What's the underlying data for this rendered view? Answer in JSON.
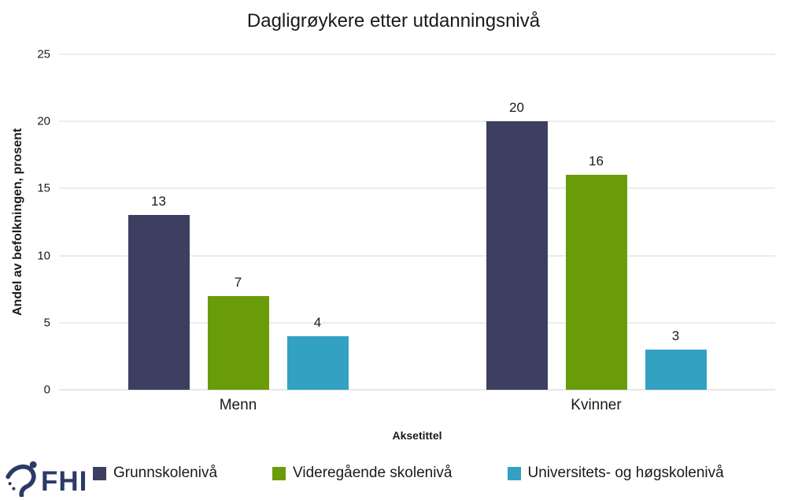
{
  "chart_data": {
    "type": "bar",
    "title": "Dagligrøykere etter utdanningsnivå",
    "categories": [
      "Menn",
      "Kvinner"
    ],
    "series": [
      {
        "name": "Grunnskolenivå",
        "color": "#3C3F60",
        "values": [
          13,
          20
        ]
      },
      {
        "name": "Videregående skolenivå",
        "color": "#6A9C0A",
        "values": [
          7,
          16
        ]
      },
      {
        "name": "Universitets- og høgskolenivå",
        "color": "#33A1C2",
        "values": [
          4,
          3
        ]
      }
    ],
    "xlabel": "Aksetittel",
    "ylabel": "Andel av befolkningen, prosent",
    "ylim": [
      0,
      25
    ],
    "yticks": [
      0,
      5,
      10,
      15,
      20,
      25
    ],
    "grid": true,
    "value_labels": true,
    "legend_position": "bottom"
  },
  "branding": {
    "logo_text": "FHI",
    "logo_color": "#2B3A67"
  },
  "colors": {
    "gridline": "#D9D9D9",
    "axis_line": "#CFCFCF",
    "background": "#FFFFFF"
  }
}
